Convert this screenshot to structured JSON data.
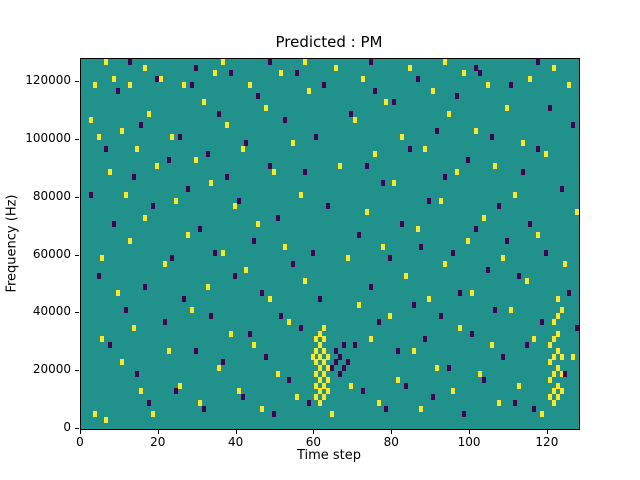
{
  "figure": {
    "title": "Predicted : PM",
    "xlabel": "Time step",
    "ylabel": "Frequency (Hz)"
  },
  "chart_data": {
    "type": "heatmap",
    "title": "Predicted : PM",
    "xlabel": "Time step",
    "ylabel": "Frequency (Hz)",
    "xlim": [
      0,
      128
    ],
    "ylim": [
      0,
      128000
    ],
    "xticks": [
      0,
      20,
      40,
      60,
      80,
      100,
      120
    ],
    "yticks": [
      0,
      20000,
      40000,
      60000,
      80000,
      100000,
      120000
    ],
    "legend": "none",
    "grid": false,
    "colors": {
      "background": "#21918c",
      "yellow": "#fde725",
      "purple": "#440154"
    },
    "cells": [
      [
        2,
        106000,
        "y"
      ],
      [
        3,
        118000,
        "y"
      ],
      [
        3,
        4000,
        "y"
      ],
      [
        4,
        100000,
        "y"
      ],
      [
        5,
        58000,
        "y"
      ],
      [
        5,
        30000,
        "y"
      ],
      [
        6,
        2000,
        "y"
      ],
      [
        6,
        126000,
        "y"
      ],
      [
        7,
        88000,
        "y"
      ],
      [
        8,
        120000,
        "y"
      ],
      [
        9,
        46000,
        "y"
      ],
      [
        10,
        102000,
        "y"
      ],
      [
        10,
        22000,
        "y"
      ],
      [
        11,
        80000,
        "y"
      ],
      [
        12,
        118000,
        "y"
      ],
      [
        12,
        64000,
        "y"
      ],
      [
        13,
        34000,
        "y"
      ],
      [
        14,
        96000,
        "y"
      ],
      [
        15,
        12000,
        "y"
      ],
      [
        16,
        72000,
        "y"
      ],
      [
        16,
        124000,
        "y"
      ],
      [
        17,
        108000,
        "y"
      ],
      [
        18,
        4000,
        "y"
      ],
      [
        19,
        90000,
        "y"
      ],
      [
        20,
        120000,
        "y"
      ],
      [
        21,
        56000,
        "y"
      ],
      [
        22,
        26000,
        "y"
      ],
      [
        23,
        100000,
        "y"
      ],
      [
        24,
        78000,
        "y"
      ],
      [
        25,
        14000,
        "y"
      ],
      [
        26,
        118000,
        "y"
      ],
      [
        27,
        66000,
        "y"
      ],
      [
        28,
        40000,
        "y"
      ],
      [
        29,
        92000,
        "y"
      ],
      [
        30,
        8000,
        "y"
      ],
      [
        31,
        112000,
        "y"
      ],
      [
        32,
        48000,
        "y"
      ],
      [
        33,
        84000,
        "y"
      ],
      [
        34,
        122000,
        "y"
      ],
      [
        35,
        20000,
        "y"
      ],
      [
        36,
        60000,
        "y"
      ],
      [
        36,
        126000,
        "y"
      ],
      [
        37,
        104000,
        "y"
      ],
      [
        38,
        32000,
        "y"
      ],
      [
        39,
        76000,
        "y"
      ],
      [
        40,
        12000,
        "y"
      ],
      [
        41,
        96000,
        "y"
      ],
      [
        42,
        54000,
        "y"
      ],
      [
        43,
        118000,
        "y"
      ],
      [
        44,
        28000,
        "y"
      ],
      [
        45,
        70000,
        "y"
      ],
      [
        46,
        6000,
        "y"
      ],
      [
        47,
        110000,
        "y"
      ],
      [
        48,
        44000,
        "y"
      ],
      [
        49,
        88000,
        "y"
      ],
      [
        50,
        18000,
        "y"
      ],
      [
        51,
        122000,
        "y"
      ],
      [
        52,
        62000,
        "y"
      ],
      [
        53,
        36000,
        "y"
      ],
      [
        54,
        98000,
        "y"
      ],
      [
        55,
        10000,
        "y"
      ],
      [
        56,
        80000,
        "y"
      ],
      [
        57,
        50000,
        "y"
      ],
      [
        57,
        126000,
        "y"
      ],
      [
        58,
        116000,
        "y"
      ],
      [
        59,
        24000,
        "y"
      ],
      [
        60,
        10000,
        "y"
      ],
      [
        60,
        14000,
        "y"
      ],
      [
        60,
        18000,
        "y"
      ],
      [
        60,
        22000,
        "y"
      ],
      [
        60,
        26000,
        "y"
      ],
      [
        60,
        30000,
        "y"
      ],
      [
        61,
        8000,
        "y"
      ],
      [
        61,
        12000,
        "y"
      ],
      [
        61,
        16000,
        "y"
      ],
      [
        61,
        20000,
        "y"
      ],
      [
        61,
        24000,
        "y"
      ],
      [
        61,
        28000,
        "y"
      ],
      [
        61,
        32000,
        "y"
      ],
      [
        62,
        10000,
        "y"
      ],
      [
        62,
        14000,
        "y"
      ],
      [
        62,
        18000,
        "y"
      ],
      [
        62,
        22000,
        "y"
      ],
      [
        62,
        26000,
        "y"
      ],
      [
        62,
        30000,
        "y"
      ],
      [
        62,
        34000,
        "y"
      ],
      [
        63,
        12000,
        "y"
      ],
      [
        63,
        16000,
        "y"
      ],
      [
        63,
        20000,
        "y"
      ],
      [
        63,
        24000,
        "y"
      ],
      [
        64,
        4000,
        "y"
      ],
      [
        65,
        124000,
        "y"
      ],
      [
        66,
        90000,
        "y"
      ],
      [
        68,
        58000,
        "y"
      ],
      [
        69,
        14000,
        "y"
      ],
      [
        70,
        106000,
        "y"
      ],
      [
        71,
        42000,
        "y"
      ],
      [
        72,
        120000,
        "y"
      ],
      [
        73,
        74000,
        "y"
      ],
      [
        74,
        30000,
        "y"
      ],
      [
        75,
        94000,
        "y"
      ],
      [
        76,
        8000,
        "y"
      ],
      [
        77,
        62000,
        "y"
      ],
      [
        78,
        112000,
        "y"
      ],
      [
        79,
        38000,
        "y"
      ],
      [
        80,
        84000,
        "y"
      ],
      [
        81,
        16000,
        "y"
      ],
      [
        82,
        100000,
        "y"
      ],
      [
        83,
        52000,
        "y"
      ],
      [
        84,
        124000,
        "y"
      ],
      [
        85,
        26000,
        "y"
      ],
      [
        86,
        68000,
        "y"
      ],
      [
        87,
        6000,
        "y"
      ],
      [
        88,
        96000,
        "y"
      ],
      [
        89,
        44000,
        "y"
      ],
      [
        90,
        116000,
        "y"
      ],
      [
        91,
        20000,
        "y"
      ],
      [
        92,
        78000,
        "y"
      ],
      [
        93,
        56000,
        "y"
      ],
      [
        93,
        126000,
        "y"
      ],
      [
        94,
        108000,
        "y"
      ],
      [
        95,
        12000,
        "y"
      ],
      [
        96,
        88000,
        "y"
      ],
      [
        97,
        34000,
        "y"
      ],
      [
        98,
        122000,
        "y"
      ],
      [
        99,
        64000,
        "y"
      ],
      [
        100,
        46000,
        "y"
      ],
      [
        101,
        102000,
        "y"
      ],
      [
        102,
        18000,
        "y"
      ],
      [
        103,
        72000,
        "y"
      ],
      [
        104,
        118000,
        "y"
      ],
      [
        105,
        28000,
        "y"
      ],
      [
        106,
        90000,
        "y"
      ],
      [
        107,
        8000,
        "y"
      ],
      [
        108,
        58000,
        "y"
      ],
      [
        109,
        110000,
        "y"
      ],
      [
        110,
        40000,
        "y"
      ],
      [
        111,
        80000,
        "y"
      ],
      [
        112,
        14000,
        "y"
      ],
      [
        113,
        98000,
        "y"
      ],
      [
        114,
        50000,
        "y"
      ],
      [
        115,
        120000,
        "y"
      ],
      [
        116,
        30000,
        "y"
      ],
      [
        117,
        66000,
        "y"
      ],
      [
        118,
        4000,
        "y"
      ],
      [
        119,
        94000,
        "y"
      ],
      [
        120,
        10000,
        "y"
      ],
      [
        120,
        16000,
        "y"
      ],
      [
        120,
        22000,
        "y"
      ],
      [
        120,
        28000,
        "y"
      ],
      [
        121,
        8000,
        "y"
      ],
      [
        121,
        12000,
        "y"
      ],
      [
        121,
        18000,
        "y"
      ],
      [
        121,
        24000,
        "y"
      ],
      [
        121,
        30000,
        "y"
      ],
      [
        121,
        36000,
        "y"
      ],
      [
        121,
        124000,
        "y"
      ],
      [
        122,
        10000,
        "y"
      ],
      [
        122,
        14000,
        "y"
      ],
      [
        122,
        20000,
        "y"
      ],
      [
        122,
        26000,
        "y"
      ],
      [
        122,
        32000,
        "y"
      ],
      [
        122,
        38000,
        "y"
      ],
      [
        122,
        44000,
        "y"
      ],
      [
        123,
        12000,
        "y"
      ],
      [
        123,
        18000,
        "y"
      ],
      [
        123,
        24000,
        "y"
      ],
      [
        123,
        40000,
        "y"
      ],
      [
        124,
        56000,
        "y"
      ],
      [
        125,
        118000,
        "y"
      ],
      [
        126,
        24000,
        "y"
      ],
      [
        127,
        74000,
        "y"
      ],
      [
        2,
        80000,
        "p"
      ],
      [
        4,
        52000,
        "p"
      ],
      [
        6,
        96000,
        "p"
      ],
      [
        7,
        28000,
        "p"
      ],
      [
        8,
        70000,
        "p"
      ],
      [
        9,
        116000,
        "p"
      ],
      [
        11,
        40000,
        "p"
      ],
      [
        12,
        126000,
        "p"
      ],
      [
        13,
        86000,
        "p"
      ],
      [
        14,
        18000,
        "p"
      ],
      [
        15,
        104000,
        "p"
      ],
      [
        16,
        48000,
        "p"
      ],
      [
        17,
        8000,
        "p"
      ],
      [
        18,
        76000,
        "p"
      ],
      [
        19,
        120000,
        "p"
      ],
      [
        21,
        36000,
        "p"
      ],
      [
        22,
        92000,
        "p"
      ],
      [
        23,
        58000,
        "p"
      ],
      [
        24,
        12000,
        "p"
      ],
      [
        25,
        100000,
        "p"
      ],
      [
        26,
        44000,
        "p"
      ],
      [
        27,
        82000,
        "p"
      ],
      [
        28,
        118000,
        "p"
      ],
      [
        29,
        26000,
        "p"
      ],
      [
        29,
        124000,
        "p"
      ],
      [
        30,
        68000,
        "p"
      ],
      [
        31,
        6000,
        "p"
      ],
      [
        32,
        94000,
        "p"
      ],
      [
        33,
        38000,
        "p"
      ],
      [
        34,
        60000,
        "p"
      ],
      [
        35,
        108000,
        "p"
      ],
      [
        36,
        22000,
        "p"
      ],
      [
        37,
        86000,
        "p"
      ],
      [
        38,
        122000,
        "p"
      ],
      [
        39,
        52000,
        "p"
      ],
      [
        40,
        78000,
        "p"
      ],
      [
        41,
        10000,
        "p"
      ],
      [
        42,
        98000,
        "p"
      ],
      [
        43,
        32000,
        "p"
      ],
      [
        44,
        64000,
        "p"
      ],
      [
        45,
        114000,
        "p"
      ],
      [
        46,
        46000,
        "p"
      ],
      [
        47,
        24000,
        "p"
      ],
      [
        48,
        90000,
        "p"
      ],
      [
        48,
        126000,
        "p"
      ],
      [
        49,
        4000,
        "p"
      ],
      [
        50,
        72000,
        "p"
      ],
      [
        51,
        38000,
        "p"
      ],
      [
        52,
        106000,
        "p"
      ],
      [
        53,
        16000,
        "p"
      ],
      [
        54,
        56000,
        "p"
      ],
      [
        55,
        122000,
        "p"
      ],
      [
        56,
        34000,
        "p"
      ],
      [
        57,
        88000,
        "p"
      ],
      [
        58,
        8000,
        "p"
      ],
      [
        59,
        60000,
        "p"
      ],
      [
        60,
        100000,
        "p"
      ],
      [
        61,
        44000,
        "p"
      ],
      [
        62,
        118000,
        "p"
      ],
      [
        63,
        76000,
        "p"
      ],
      [
        64,
        20000,
        "p"
      ],
      [
        65,
        22000,
        "p"
      ],
      [
        65,
        26000,
        "p"
      ],
      [
        66,
        18000,
        "p"
      ],
      [
        66,
        24000,
        "p"
      ],
      [
        67,
        20000,
        "p"
      ],
      [
        67,
        28000,
        "p"
      ],
      [
        68,
        22000,
        "p"
      ],
      [
        69,
        108000,
        "p"
      ],
      [
        70,
        28000,
        "p"
      ],
      [
        71,
        66000,
        "p"
      ],
      [
        72,
        12000,
        "p"
      ],
      [
        73,
        90000,
        "p"
      ],
      [
        74,
        48000,
        "p"
      ],
      [
        74,
        126000,
        "p"
      ],
      [
        75,
        116000,
        "p"
      ],
      [
        76,
        36000,
        "p"
      ],
      [
        77,
        84000,
        "p"
      ],
      [
        78,
        6000,
        "p"
      ],
      [
        79,
        58000,
        "p"
      ],
      [
        80,
        112000,
        "p"
      ],
      [
        81,
        26000,
        "p"
      ],
      [
        82,
        70000,
        "p"
      ],
      [
        83,
        14000,
        "p"
      ],
      [
        84,
        96000,
        "p"
      ],
      [
        85,
        42000,
        "p"
      ],
      [
        86,
        120000,
        "p"
      ],
      [
        87,
        62000,
        "p"
      ],
      [
        88,
        30000,
        "p"
      ],
      [
        89,
        78000,
        "p"
      ],
      [
        90,
        10000,
        "p"
      ],
      [
        91,
        102000,
        "p"
      ],
      [
        92,
        38000,
        "p"
      ],
      [
        93,
        86000,
        "p"
      ],
      [
        94,
        20000,
        "p"
      ],
      [
        95,
        60000,
        "p"
      ],
      [
        96,
        114000,
        "p"
      ],
      [
        97,
        46000,
        "p"
      ],
      [
        98,
        4000,
        "p"
      ],
      [
        99,
        92000,
        "p"
      ],
      [
        100,
        32000,
        "p"
      ],
      [
        101,
        68000,
        "p"
      ],
      [
        101,
        124000,
        "p"
      ],
      [
        102,
        122000,
        "p"
      ],
      [
        103,
        16000,
        "p"
      ],
      [
        104,
        54000,
        "p"
      ],
      [
        105,
        100000,
        "p"
      ],
      [
        106,
        40000,
        "p"
      ],
      [
        107,
        76000,
        "p"
      ],
      [
        108,
        24000,
        "p"
      ],
      [
        109,
        64000,
        "p"
      ],
      [
        110,
        118000,
        "p"
      ],
      [
        111,
        8000,
        "p"
      ],
      [
        112,
        52000,
        "p"
      ],
      [
        113,
        88000,
        "p"
      ],
      [
        114,
        28000,
        "p"
      ],
      [
        115,
        70000,
        "p"
      ],
      [
        116,
        6000,
        "p"
      ],
      [
        117,
        96000,
        "p"
      ],
      [
        117,
        126000,
        "p"
      ],
      [
        118,
        36000,
        "p"
      ],
      [
        119,
        60000,
        "p"
      ],
      [
        120,
        110000,
        "p"
      ],
      [
        123,
        82000,
        "p"
      ],
      [
        124,
        18000,
        "p"
      ],
      [
        125,
        46000,
        "p"
      ],
      [
        126,
        104000,
        "p"
      ],
      [
        127,
        34000,
        "p"
      ]
    ]
  }
}
